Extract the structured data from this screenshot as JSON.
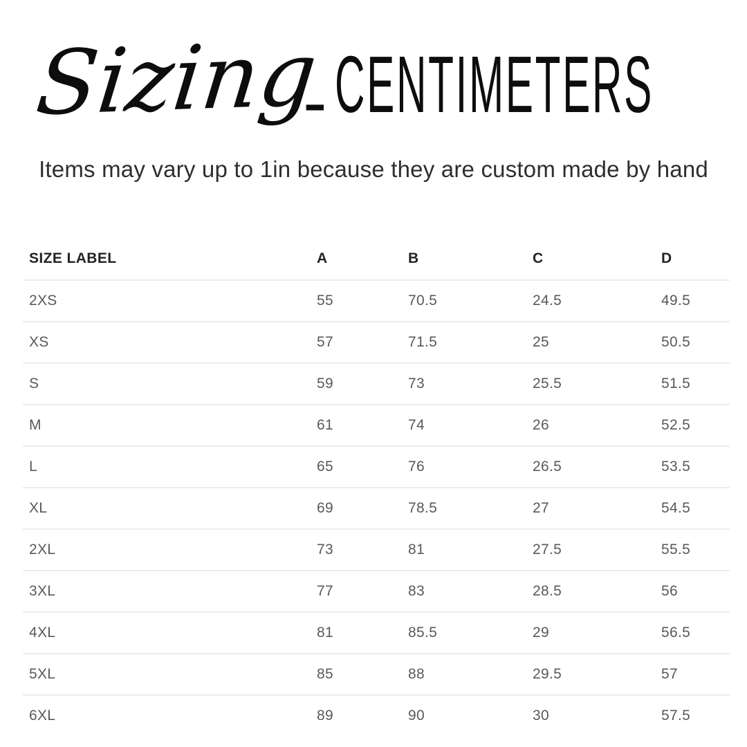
{
  "title": {
    "script": "Sizing",
    "separator": "-",
    "main": "CENTIMETERS"
  },
  "subtitle": "Items may vary up to 1in because they are custom made by hand",
  "chart_data": {
    "type": "table",
    "title": "Sizing - CENTIMETERS",
    "subtitle": "Items may vary up to 1in because they are custom made by hand",
    "units": "centimeters",
    "columns": [
      "SIZE LABEL",
      "A",
      "B",
      "C",
      "D"
    ],
    "rows": [
      [
        "2XS",
        "55",
        "70.5",
        "24.5",
        "49.5"
      ],
      [
        "XS",
        "57",
        "71.5",
        "25",
        "50.5"
      ],
      [
        "S",
        "59",
        "73",
        "25.5",
        "51.5"
      ],
      [
        "M",
        "61",
        "74",
        "26",
        "52.5"
      ],
      [
        "L",
        "65",
        "76",
        "26.5",
        "53.5"
      ],
      [
        "XL",
        "69",
        "78.5",
        "27",
        "54.5"
      ],
      [
        "2XL",
        "73",
        "81",
        "27.5",
        "55.5"
      ],
      [
        "3XL",
        "77",
        "83",
        "28.5",
        "56"
      ],
      [
        "4XL",
        "81",
        "85.5",
        "29",
        "56.5"
      ],
      [
        "5XL",
        "85",
        "88",
        "29.5",
        "57"
      ],
      [
        "6XL",
        "89",
        "90",
        "30",
        "57.5"
      ]
    ]
  },
  "colors": {
    "background": "#ffffff",
    "title_text": "#0d0d0d",
    "subtitle_text": "#2e2e2e",
    "header_text": "#232323",
    "cell_text": "#595959",
    "divider": "#ececec"
  }
}
